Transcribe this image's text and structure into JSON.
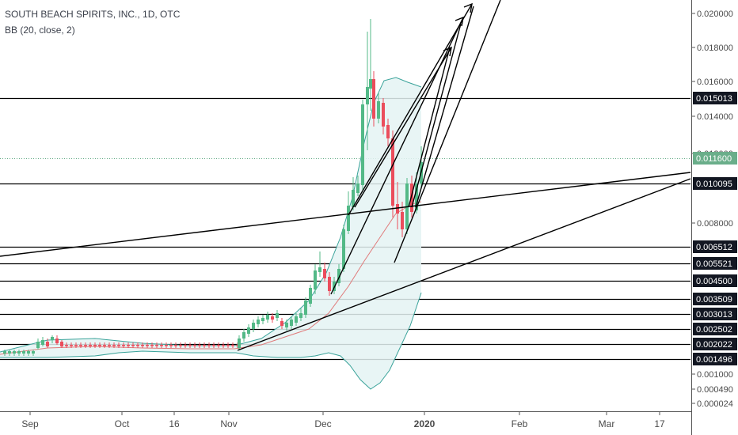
{
  "title": "SOUTH BEACH SPIRITS, INC., 1D, OTC",
  "indicator": "BB (20, close, 2)",
  "chart_data": {
    "type": "candlestick",
    "title": "SOUTH BEACH SPIRITS, INC., 1D, OTC",
    "indicator": "BB (20, close, 2)",
    "y_scale": "log",
    "ylim": [
      2.4e-05,
      0.02
    ],
    "y_ticks": [
      "0.020000",
      "0.018000",
      "0.016000",
      "0.014000",
      "0.012000",
      "0.008000",
      "0.001000",
      "0.000490",
      "0.000024"
    ],
    "price_levels": [
      "0.015013",
      "0.010095",
      "0.006512",
      "0.005521",
      "0.004500",
      "0.003509",
      "0.003013",
      "0.002502",
      "0.002022",
      "0.001496"
    ],
    "last_price": "0.011600",
    "x_labels": [
      "Sep",
      "Oct",
      "16",
      "Nov",
      "Dec",
      "2020",
      "Feb",
      "Mar",
      "17"
    ],
    "grid": false,
    "colors": {
      "up": "#53b987",
      "down": "#eb4d5c",
      "band_fill": "#e4f3f3",
      "band_line": "#3aa39a",
      "basis_line": "#e07a7a",
      "drawing": "#000000",
      "last_price_bg": "#6aae8a"
    }
  }
}
